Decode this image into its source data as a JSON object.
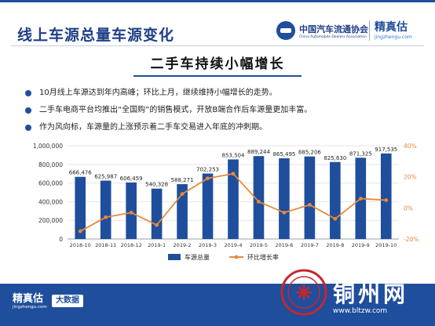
{
  "header": {
    "title": "线上车源总量车源变化",
    "logo1_cn": "中国汽车流通协会",
    "logo1_en": "China Automobile Dealers Association",
    "logo2_cn": "精真估",
    "logo2_en": "jingzhengu.com"
  },
  "section": {
    "title": "二手车持续小幅增长"
  },
  "bullets": [
    "10月线上车源达到年内高峰；环比上月，继续维持小幅增长的走势。",
    "二手车电商平台均推出“全国购”的销售模式，开放B端合作后车源量更加丰富。",
    "作为风向标，车源量的上涨预示着二手车交易进入年底的冲刺期。"
  ],
  "colors": {
    "primary": "#1f4e9c",
    "bar": "#1f4e9c",
    "line": "#e8893b",
    "footer": "#1f4e9c"
  },
  "chart_data": {
    "type": "bar",
    "categories": [
      "2018-10",
      "2018-11",
      "2018-12",
      "2019-1",
      "2019-2",
      "2019-3",
      "2019-4",
      "2019-5",
      "2019-6",
      "2019-7",
      "2019-8",
      "2019-9",
      "2019-10"
    ],
    "series": [
      {
        "name": "车源总量",
        "type": "bar",
        "axis": "left",
        "values": [
          666476,
          625987,
          606459,
          540328,
          588271,
          702253,
          853504,
          889244,
          865495,
          885206,
          825630,
          871325,
          917535
        ]
      },
      {
        "name": "环比增长率",
        "type": "line",
        "axis": "right",
        "values": [
          -15,
          -6,
          -3,
          -11,
          9,
          19,
          22,
          4,
          -3,
          2,
          -7,
          6,
          5
        ]
      }
    ],
    "data_labels": [
      "666,476",
      "625,987",
      "606,459",
      "540,328",
      "588,271",
      "702,253",
      "853,504",
      "889,244",
      "865,495",
      "885,206",
      "825,630",
      "871,325",
      "917,535"
    ],
    "y_left": {
      "min": 0,
      "max": 1000000,
      "ticks": [
        "0",
        "200,000",
        "400,000",
        "600,000",
        "800,000",
        "1,000,000"
      ]
    },
    "y_right": {
      "min": -20,
      "max": 40,
      "ticks": [
        "-20%",
        "0%",
        "20%",
        "40%"
      ]
    },
    "legend_position": "bottom",
    "grid": true
  },
  "footer": {
    "brand_cn": "精真估",
    "brand_en": "jingzhengu.com",
    "tag": "大数据"
  },
  "watermark": {
    "text": "铜州网",
    "url": "www.bltzw.com"
  }
}
